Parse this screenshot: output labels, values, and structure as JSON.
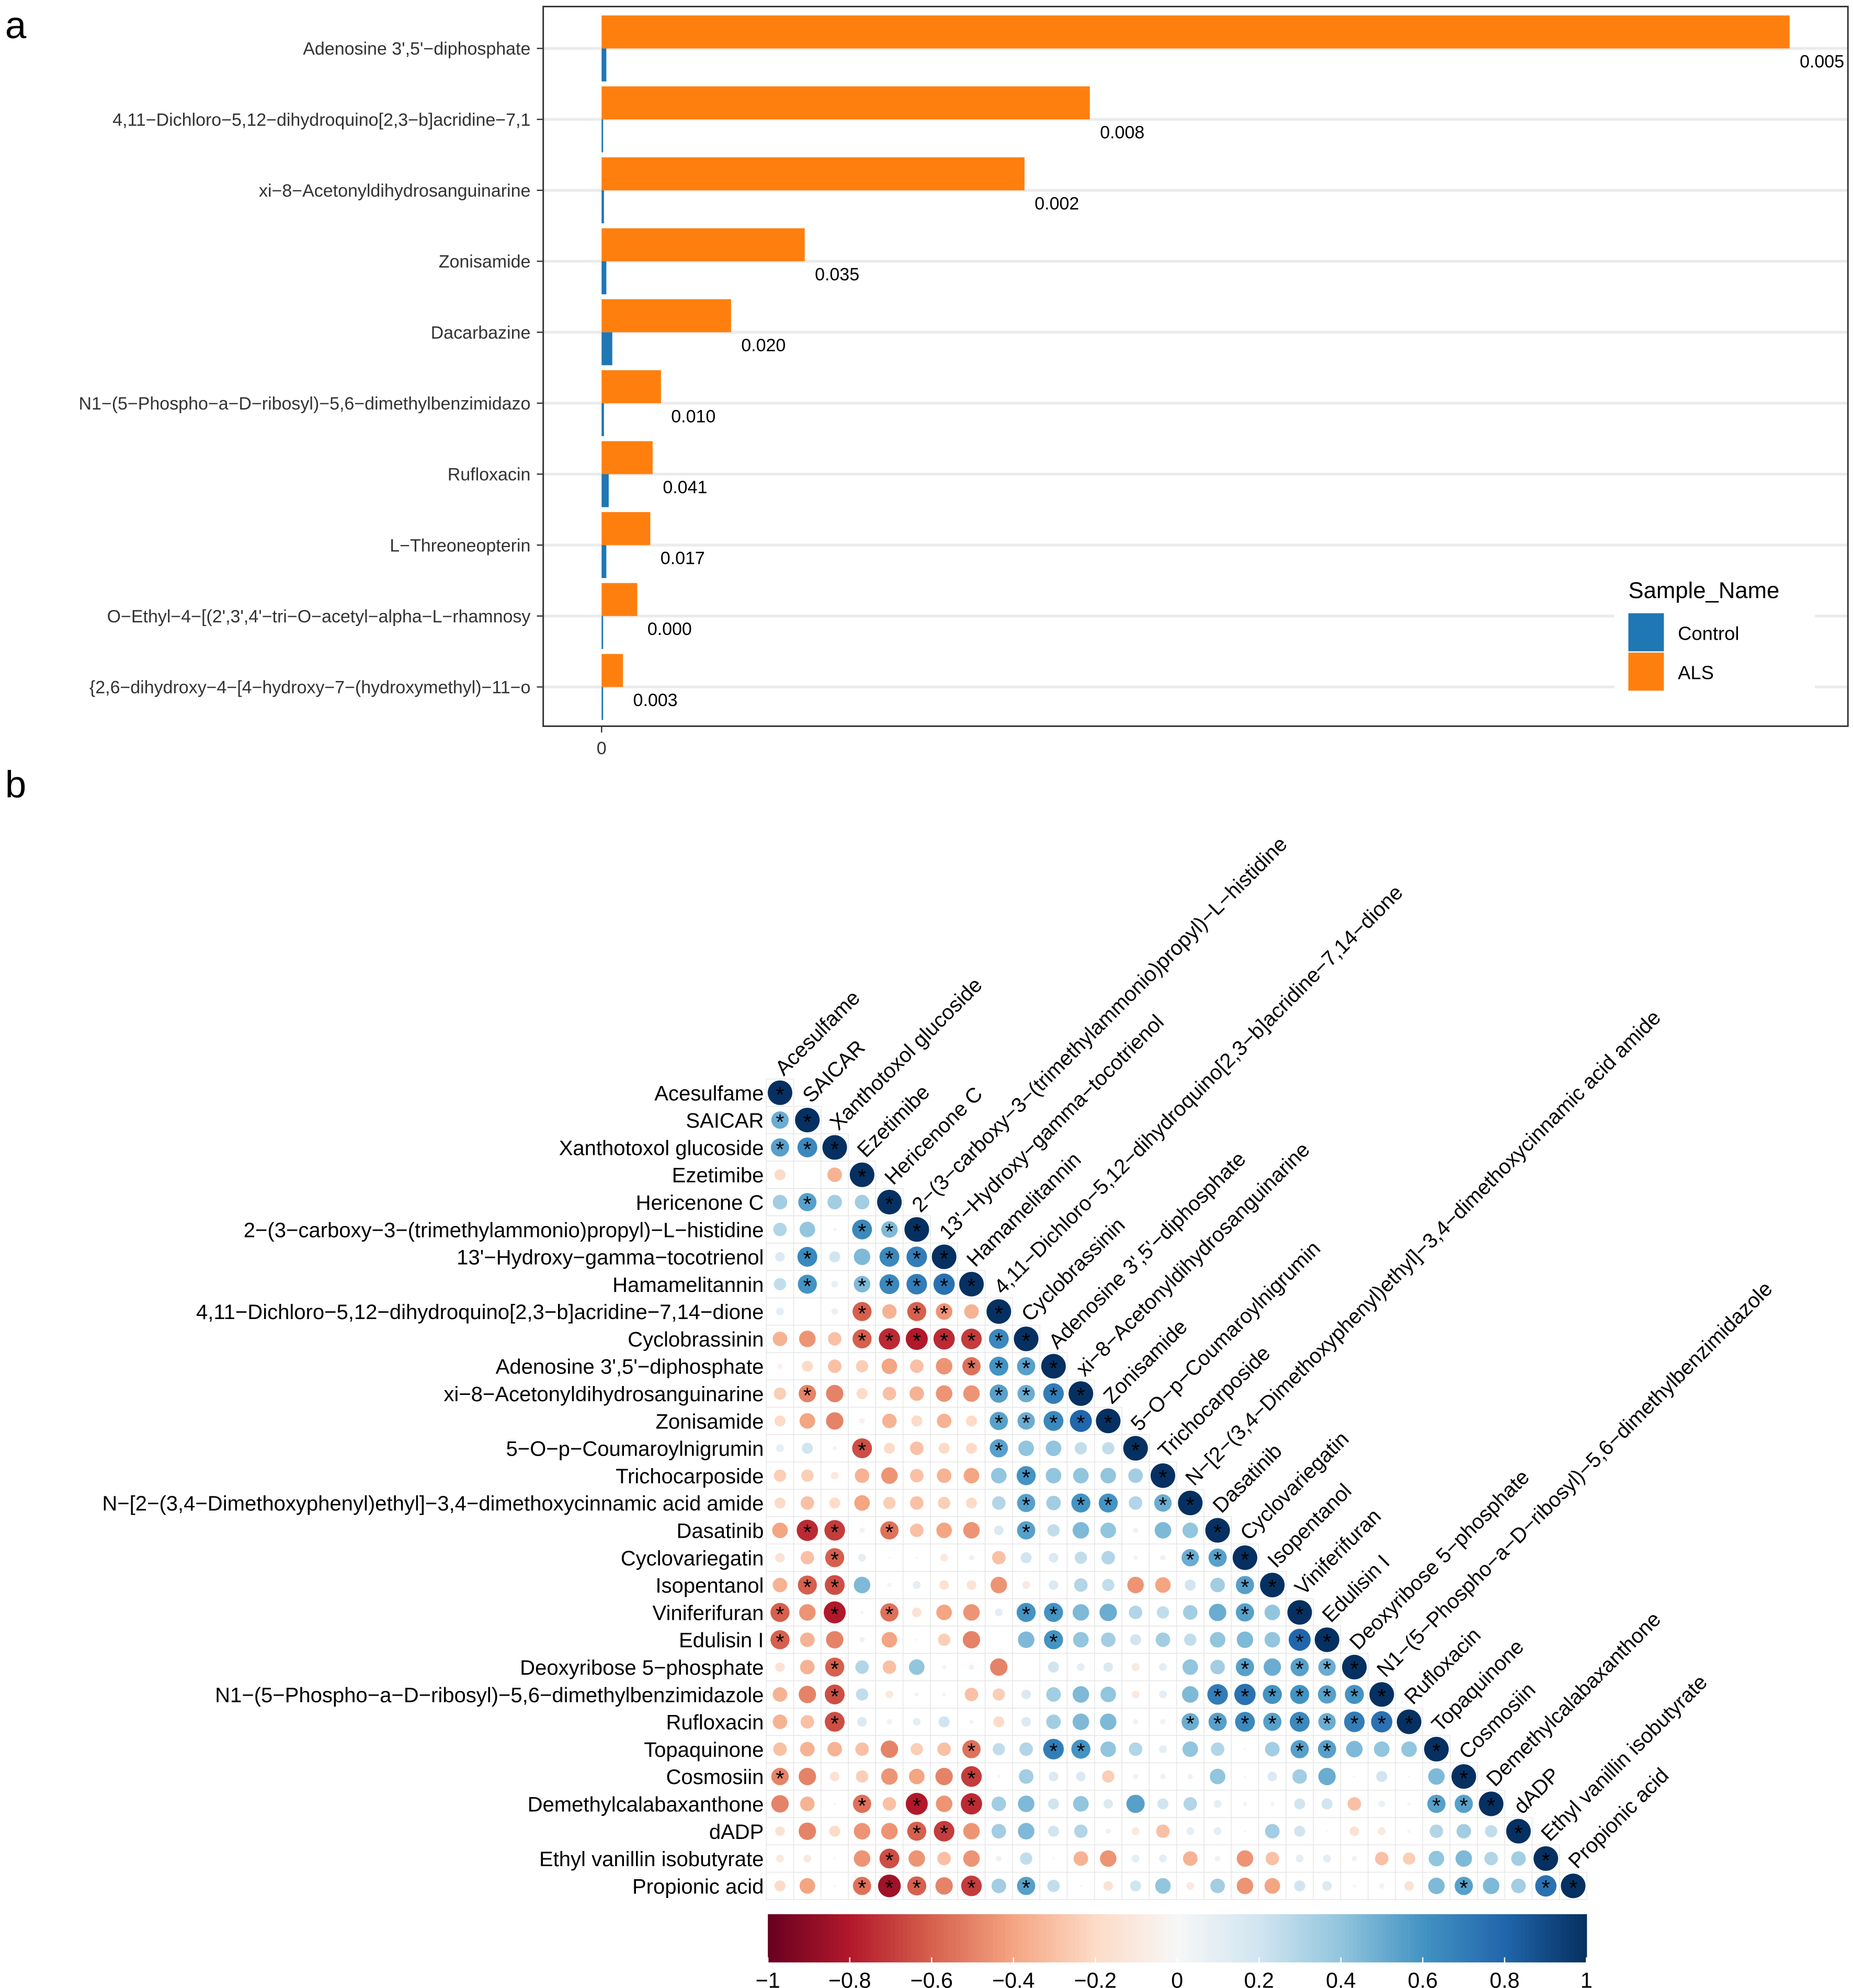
{
  "chart_data": [
    {
      "type": "bar",
      "orientation": "horizontal",
      "panel_label": "a",
      "categories": [
        "Adenosine 3',5'−diphosphate",
        "4,11−Dichloro−5,12−dihydroquino[2,3−b]acridine−7,1",
        "xi−8−Acetonyldihydrosanguinarine",
        "Zonisamide",
        "Dacarbazine",
        "N1−(5−Phospho−a−D−ribosyl)−5,6−dimethylbenzimidazo",
        "Rufloxacin",
        "L−Threoneopterin",
        "O−Ethyl−4−[(2',3',4'−tri−O−acetyl−alpha−L−rhamnosy",
        "{2,6−dihydroxy−4−[4−hydroxy−7−(hydroxymethyl)−11−o"
      ],
      "series": [
        {
          "name": "Control",
          "color": "#1F77B4",
          "values": [
            0.4,
            0.1,
            0.2,
            0.4,
            0.9,
            0.2,
            0.6,
            0.4,
            0.1,
            0.1
          ]
        },
        {
          "name": "ALS",
          "color": "#FF7F0E",
          "values": [
            100,
            41.1,
            35.6,
            17.1,
            10.9,
            5.0,
            4.3,
            4.1,
            3.0,
            1.8
          ]
        }
      ],
      "value_labels": [
        "0.005",
        "0.008",
        "0.002",
        "0.035",
        "0.020",
        "0.010",
        "0.041",
        "0.017",
        "0.000",
        "0.003"
      ],
      "xticks": [
        "0"
      ],
      "legend_title": "Sample_Name",
      "legend_position": "bottom-right",
      "grid": "horizontal"
    },
    {
      "type": "heatmap",
      "subtype": "correlation-lower-triangle-circles",
      "panel_label": "b",
      "labels": [
        "Acesulfame",
        "SAICAR",
        "Xanthotoxol glucoside",
        "Ezetimibe",
        "Hericenone C",
        "2−(3−carboxy−3−(trimethylammonio)propyl)−L−histidine",
        "13'−Hydroxy−gamma−tocotrienol",
        "Hamamelitannin",
        "4,11−Dichloro−5,12−dihydroquino[2,3−b]acridine−7,14−dione",
        "Cyclobrassinin",
        "Adenosine 3',5'−diphosphate",
        "xi−8−Acetonyldihydrosanguinarine",
        "Zonisamide",
        "5−O−p−Coumaroylnigrumin",
        "Trichocarposide",
        "N−[2−(3,4−Dimethoxyphenyl)ethyl]−3,4−dimethoxycinnamic acid amide",
        "Dasatinib",
        "Cyclovariegatin",
        "Isopentanol",
        "Viniferifuran",
        "Edulisin I",
        "Deoxyribose 5−phosphate",
        "N1−(5−Phospho−a−D−ribosyl)−5,6−dimethylbenzimidazole",
        "Rufloxacin",
        "Topaquinone",
        "Cosmosiin",
        "Demethylcalabaxanthone",
        "dADP",
        "Ethyl vanillin isobutyrate",
        "Propionic acid"
      ],
      "r": [
        [],
        [
          0.5
        ],
        [
          0.55,
          0.65
        ],
        [
          -0.2,
          0,
          -0.35
        ],
        [
          0.35,
          0.55,
          0.35,
          0.35
        ],
        [
          0.3,
          0.4,
          0.02,
          0.65,
          0.45
        ],
        [
          0.15,
          0.65,
          0.2,
          0.45,
          0.65,
          0.7
        ],
        [
          0.25,
          0.6,
          0.08,
          0.45,
          0.65,
          0.7,
          0.75
        ],
        [
          0.1,
          0,
          0.07,
          -0.6,
          -0.35,
          -0.6,
          -0.45,
          -0.35
        ],
        [
          -0.35,
          -0.45,
          -0.3,
          -0.6,
          -0.75,
          -0.8,
          -0.75,
          -0.7,
          0.65
        ],
        [
          -0.05,
          -0.2,
          -0.3,
          -0.25,
          -0.4,
          -0.3,
          -0.45,
          -0.55,
          0.6,
          0.55
        ],
        [
          -0.25,
          -0.5,
          -0.5,
          -0.2,
          -0.3,
          -0.35,
          -0.45,
          -0.45,
          0.55,
          0.5,
          0.7
        ],
        [
          -0.2,
          -0.4,
          -0.5,
          -0.05,
          -0.35,
          -0.2,
          -0.35,
          -0.2,
          0.55,
          0.5,
          0.65,
          0.8
        ],
        [
          0.1,
          0.2,
          0.03,
          -0.65,
          -0.2,
          -0.3,
          -0.2,
          -0.2,
          0.55,
          0.4,
          0.4,
          0.25,
          0.25
        ],
        [
          -0.25,
          -0.25,
          -0.1,
          -0.35,
          -0.45,
          -0.3,
          -0.35,
          -0.4,
          0.4,
          0.6,
          0.4,
          0.4,
          0.4,
          0.35
        ],
        [
          -0.2,
          -0.3,
          -0.2,
          -0.4,
          -0.25,
          -0.3,
          -0.25,
          -0.2,
          0.3,
          0.55,
          0.35,
          0.6,
          0.6,
          0.3,
          0.5
        ],
        [
          -0.4,
          -0.75,
          -0.7,
          -0.05,
          -0.55,
          -0.3,
          -0.4,
          -0.45,
          0.15,
          0.55,
          0.25,
          0.45,
          0.4,
          -0.05,
          0.45,
          0.4
        ],
        [
          -0.15,
          -0.3,
          -0.6,
          0.1,
          0.01,
          0.01,
          -0.1,
          0.05,
          -0.3,
          0.2,
          0.15,
          0.25,
          0.3,
          0.03,
          0.05,
          0.5,
          0.55
        ],
        [
          -0.35,
          -0.6,
          -0.65,
          0.45,
          0.03,
          0.1,
          -0.15,
          -0.15,
          -0.45,
          -0.1,
          0.15,
          0.3,
          0.25,
          -0.45,
          -0.4,
          0.2,
          0.35,
          0.55
        ],
        [
          -0.6,
          -0.45,
          -0.8,
          0.02,
          -0.55,
          -0.15,
          -0.4,
          -0.45,
          0.1,
          0.6,
          0.6,
          0.45,
          0.5,
          0.3,
          0.25,
          0.35,
          0.5,
          0.55,
          0.4
        ],
        [
          -0.6,
          -0.35,
          -0.5,
          0.05,
          -0.4,
          0.01,
          -0.25,
          -0.5,
          0,
          0.45,
          0.6,
          0.4,
          0.35,
          0.2,
          0.35,
          0.25,
          0.4,
          0.45,
          0.4,
          0.8
        ],
        [
          -0.15,
          -0.35,
          -0.6,
          0.3,
          -0.3,
          0.4,
          0.03,
          -0.05,
          -0.5,
          0,
          0.2,
          0.1,
          0.15,
          -0.1,
          0.1,
          0.4,
          0.35,
          0.55,
          0.5,
          0.55,
          0.5
        ],
        [
          -0.35,
          -0.5,
          -0.65,
          0.25,
          -0.1,
          0.03,
          -0.03,
          -0.3,
          -0.25,
          0.15,
          0.35,
          0.45,
          0.4,
          -0.1,
          0.1,
          0.45,
          0.7,
          0.75,
          0.6,
          0.6,
          0.55,
          0.6
        ],
        [
          -0.35,
          -0.3,
          -0.65,
          0.15,
          -0.05,
          0.1,
          0.2,
          -0.03,
          -0.2,
          0.15,
          0.35,
          0.45,
          0.45,
          -0.05,
          0.05,
          0.5,
          0.55,
          0.65,
          0.55,
          0.65,
          0.5,
          0.7,
          0.75
        ],
        [
          -0.3,
          -0.35,
          -0.35,
          -0.3,
          -0.5,
          -0.25,
          -0.3,
          -0.55,
          0.25,
          0.3,
          0.7,
          0.6,
          0.4,
          0.3,
          0.1,
          0.4,
          0.3,
          0.01,
          0.35,
          0.55,
          0.55,
          0.45,
          0.4,
          0.4
        ],
        [
          -0.5,
          -0.5,
          -0.15,
          -0.25,
          -0.45,
          -0.4,
          -0.5,
          -0.7,
          0.02,
          0.35,
          0.15,
          0.15,
          -0.25,
          0.05,
          0.05,
          -0.05,
          0.4,
          0.01,
          0.15,
          0.35,
          0.5,
          0.01,
          0.2,
          0.01,
          0.45
        ],
        [
          -0.5,
          -0.35,
          0.01,
          -0.55,
          -0.3,
          -0.8,
          -0.45,
          -0.75,
          0.35,
          0.45,
          0.2,
          0.4,
          0.15,
          0.55,
          0.2,
          0.3,
          0.1,
          -0.03,
          0.03,
          0.2,
          0.2,
          -0.3,
          0.07,
          0.02,
          0.55,
          0.55
        ],
        [
          -0.15,
          -0.5,
          -0.2,
          -0.45,
          -0.45,
          -0.6,
          -0.7,
          -0.45,
          0.35,
          0.45,
          0.2,
          0.3,
          0.05,
          -0.1,
          -0.3,
          0.1,
          0.1,
          0.01,
          0.35,
          0.2,
          0.01,
          -0.15,
          -0.1,
          0.02,
          0.3,
          0.35,
          0.25
        ],
        [
          -0.1,
          -0.1,
          0.01,
          -0.45,
          -0.65,
          -0.45,
          -0.3,
          -0.45,
          0.05,
          0.25,
          0.01,
          -0.35,
          -0.45,
          0.1,
          0.1,
          -0.35,
          0.05,
          -0.45,
          -0.3,
          0.1,
          0.1,
          0.05,
          -0.3,
          -0.25,
          0.4,
          0.45,
          0.3,
          0.35
        ],
        [
          -0.2,
          -0.4,
          0.01,
          -0.55,
          -0.85,
          -0.6,
          -0.5,
          -0.7,
          0.35,
          0.55,
          0.25,
          0.01,
          -0.15,
          0.2,
          0.4,
          -0.1,
          0.35,
          -0.45,
          -0.4,
          0.2,
          0.15,
          0.02,
          -0.05,
          -0.15,
          0.45,
          0.55,
          0.45,
          0.35,
          0.75
        ]
      ],
      "significant": [
        [],
        [
          0
        ],
        [
          0,
          1
        ],
        [],
        [
          1
        ],
        [
          3,
          4
        ],
        [
          1,
          4,
          5
        ],
        [
          1,
          3,
          4,
          5,
          6
        ],
        [
          3,
          5,
          6
        ],
        [
          3,
          4,
          5,
          6,
          7,
          8
        ],
        [
          7,
          8,
          9
        ],
        [
          1,
          8,
          9,
          10
        ],
        [
          8,
          9,
          10,
          11
        ],
        [
          3,
          8
        ],
        [
          9
        ],
        [
          9,
          11,
          12,
          14
        ],
        [
          1,
          2,
          4,
          9
        ],
        [
          2,
          15,
          16
        ],
        [
          1,
          2,
          17
        ],
        [
          0,
          2,
          4,
          9,
          10,
          17
        ],
        [
          0,
          10,
          19
        ],
        [
          2,
          17,
          19,
          20
        ],
        [
          2,
          16,
          17,
          18,
          19,
          20,
          21
        ],
        [
          2,
          15,
          16,
          17,
          18,
          19,
          20,
          21,
          22
        ],
        [
          7,
          10,
          11,
          19,
          20
        ],
        [
          0,
          7
        ],
        [
          3,
          5,
          7,
          24,
          25
        ],
        [
          5,
          6
        ],
        [
          4
        ],
        [
          3,
          4,
          5,
          7,
          9,
          25,
          28
        ]
      ],
      "diagonal_value": 1,
      "significance_marker": "*",
      "colorbar_range": [
        -1,
        1
      ],
      "colorbar_ticks": [
        "−1",
        "−0.8",
        "−0.6",
        "−0.4",
        "−0.2",
        "0",
        "0.2",
        "0.4",
        "0.6",
        "0.8",
        "1"
      ],
      "color_scale": [
        "#67001F",
        "#B2182B",
        "#D6604D",
        "#F4A582",
        "#FDDBC7",
        "#F7F7F7",
        "#D1E5F0",
        "#92C5DE",
        "#4393C3",
        "#2166AC",
        "#053061"
      ],
      "legend_position": "bottom"
    }
  ]
}
